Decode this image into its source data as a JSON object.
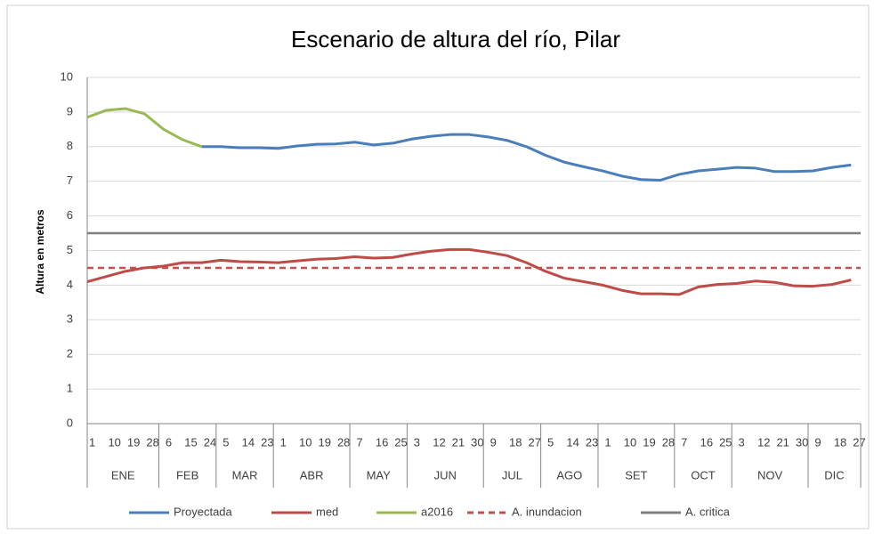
{
  "chart_data": {
    "type": "line",
    "title": "Escenario de altura del río, Pilar",
    "y_label": "Altura en metros",
    "categories": [
      "1",
      "10",
      "19",
      "28",
      "6",
      "15",
      "24",
      "5",
      "14",
      "23",
      "1",
      "10",
      "19",
      "28",
      "7",
      "16",
      "25",
      "3",
      "12",
      "21",
      "30",
      "9",
      "18",
      "27",
      "5",
      "14",
      "23",
      "1",
      "10",
      "19",
      "28",
      "7",
      "16",
      "25",
      "3",
      "12",
      "21",
      "30",
      "9",
      "18",
      "27"
    ],
    "months": [
      "ENE",
      "ENE",
      "ENE",
      "ENE",
      "FEB",
      "FEB",
      "FEB",
      "MAR",
      "MAR",
      "MAR",
      "ABR",
      "ABR",
      "ABR",
      "ABR",
      "MAY",
      "MAY",
      "MAY",
      "JUN",
      "JUN",
      "JUN",
      "JUN",
      "JUL",
      "JUL",
      "JUL",
      "AGO",
      "AGO",
      "AGO",
      "SET",
      "SET",
      "SET",
      "SET",
      "OCT",
      "OCT",
      "OCT",
      "NOV",
      "NOV",
      "NOV",
      "NOV",
      "DIC",
      "DIC",
      "DIC"
    ],
    "series": [
      {
        "name": "Proyectada",
        "color": "#4a7ebb",
        "values": [
          null,
          null,
          null,
          null,
          null,
          null,
          8.0,
          8.0,
          7.97,
          7.97,
          7.95,
          8.02,
          8.07,
          8.08,
          8.13,
          8.05,
          8.1,
          8.22,
          8.3,
          8.35,
          8.35,
          8.28,
          8.18,
          8.0,
          7.75,
          7.55,
          7.42,
          7.3,
          7.15,
          7.05,
          7.03,
          7.2,
          7.3,
          7.35,
          7.4,
          7.38,
          7.28,
          7.28,
          7.3,
          7.4,
          7.47
        ]
      },
      {
        "name": "med",
        "color": "#be4b48",
        "values": [
          4.1,
          4.25,
          4.4,
          4.5,
          4.55,
          4.65,
          4.65,
          4.72,
          4.68,
          4.67,
          4.65,
          4.7,
          4.75,
          4.77,
          4.82,
          4.78,
          4.8,
          4.9,
          4.98,
          5.03,
          5.03,
          4.95,
          4.85,
          4.65,
          4.4,
          4.2,
          4.1,
          4.0,
          3.85,
          3.75,
          3.75,
          3.73,
          3.95,
          4.02,
          4.05,
          4.12,
          4.08,
          3.98,
          3.97,
          4.02,
          4.15
        ]
      },
      {
        "name": "a2016",
        "color": "#98b954",
        "values": [
          8.85,
          9.05,
          9.1,
          8.95,
          8.5,
          8.2,
          8.0,
          null,
          null,
          null,
          null,
          null,
          null,
          null,
          null,
          null,
          null,
          null,
          null,
          null,
          null,
          null,
          null,
          null,
          null,
          null,
          null,
          null,
          null,
          null,
          null,
          null,
          null,
          null,
          null,
          null,
          null,
          null,
          null,
          null,
          null
        ]
      }
    ],
    "lines": [
      {
        "name": "A. inundacion",
        "color": "#c0504d",
        "value": 4.5,
        "dashed": true
      },
      {
        "name": "A. critica",
        "color": "#7f7f7f",
        "value": 5.5,
        "dashed": false
      }
    ],
    "ylim": [
      0,
      10
    ],
    "yticks": [
      0,
      1,
      2,
      3,
      4,
      5,
      6,
      7,
      8,
      9,
      10
    ],
    "grid": true
  }
}
